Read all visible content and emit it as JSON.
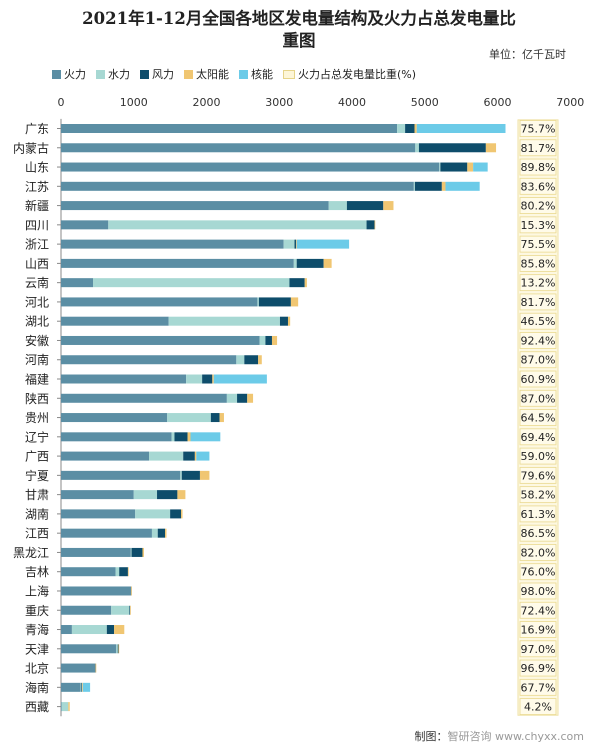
{
  "chart_data": {
    "type": "bar",
    "orientation": "horizontal",
    "stacked": true,
    "title_line1": "2021年1-12月全国各地区发电量结构及火力占总发电量比",
    "title_line2": "重图",
    "unit": "单位：亿千瓦时",
    "xlim": [
      0,
      7000
    ],
    "xticks": [
      0,
      1000,
      2000,
      3000,
      4000,
      5000,
      6000,
      7000
    ],
    "grid": false,
    "legend_position": "top",
    "ratio_legend": "火力占总发电量比重(%)",
    "categories": [
      "广东",
      "内蒙古",
      "山东",
      "江苏",
      "新疆",
      "四川",
      "浙江",
      "山西",
      "云南",
      "河北",
      "湖北",
      "安徽",
      "河南",
      "福建",
      "陕西",
      "贵州",
      "辽宁",
      "广西",
      "宁夏",
      "甘肃",
      "湖南",
      "江西",
      "黑龙江",
      "吉林",
      "上海",
      "重庆",
      "青海",
      "天津",
      "北京",
      "海南",
      "西藏"
    ],
    "series": [
      {
        "name": "火力",
        "color": "#5b8ea4",
        "values": [
          4620,
          4870,
          5200,
          4850,
          3680,
          650,
          3060,
          3200,
          440,
          2700,
          1480,
          2730,
          2410,
          1720,
          2280,
          1460,
          1520,
          1210,
          1640,
          1000,
          1020,
          1250,
          960,
          750,
          960,
          690,
          150,
          760,
          470,
          270,
          10
        ]
      },
      {
        "name": "水力",
        "color": "#a7d8d3",
        "values": [
          110,
          50,
          15,
          15,
          250,
          3550,
          150,
          40,
          2700,
          20,
          1530,
          80,
          110,
          220,
          140,
          600,
          40,
          470,
          20,
          320,
          480,
          80,
          10,
          50,
          0,
          250,
          480,
          20,
          0,
          10,
          90
        ]
      },
      {
        "name": "风力",
        "color": "#0e4d6b",
        "values": [
          130,
          920,
          370,
          370,
          500,
          110,
          20,
          370,
          210,
          440,
          110,
          90,
          190,
          140,
          140,
          120,
          180,
          160,
          250,
          280,
          150,
          100,
          150,
          120,
          5,
          10,
          100,
          10,
          5,
          10,
          0
        ]
      },
      {
        "name": "太阳能",
        "color": "#f0c672",
        "values": [
          30,
          140,
          80,
          50,
          140,
          10,
          10,
          110,
          30,
          100,
          30,
          70,
          50,
          20,
          80,
          60,
          40,
          20,
          130,
          110,
          20,
          20,
          20,
          10,
          10,
          10,
          140,
          10,
          10,
          10,
          20
        ]
      },
      {
        "name": "核能",
        "color": "#6ccbe8",
        "values": [
          1220,
          0,
          200,
          470,
          0,
          0,
          720,
          0,
          0,
          0,
          0,
          0,
          0,
          730,
          0,
          0,
          410,
          180,
          0,
          0,
          0,
          0,
          0,
          0,
          0,
          0,
          0,
          0,
          0,
          100,
          0
        ]
      }
    ],
    "fire_share_pct": [
      "75.7%",
      "81.7%",
      "89.8%",
      "83.6%",
      "80.2%",
      "15.3%",
      "75.5%",
      "85.8%",
      "13.2%",
      "81.7%",
      "46.5%",
      "92.4%",
      "87.0%",
      "60.9%",
      "87.0%",
      "64.5%",
      "69.4%",
      "59.0%",
      "79.6%",
      "58.2%",
      "61.3%",
      "86.5%",
      "82.0%",
      "76.0%",
      "98.0%",
      "72.4%",
      "16.9%",
      "97.0%",
      "96.9%",
      "67.7%",
      "4.2%"
    ]
  },
  "footer": {
    "label": "制图：",
    "source": "智研咨询 www.chyxx.com"
  }
}
